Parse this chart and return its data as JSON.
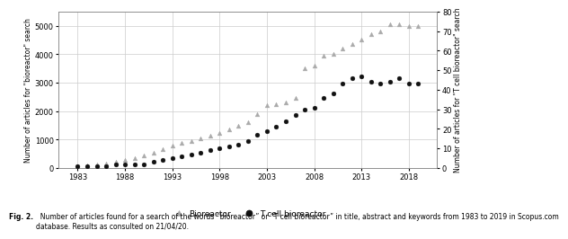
{
  "years": [
    1983,
    1984,
    1985,
    1986,
    1987,
    1988,
    1989,
    1990,
    1991,
    1992,
    1993,
    1994,
    1995,
    1996,
    1997,
    1998,
    1999,
    2000,
    2001,
    2002,
    2003,
    2004,
    2005,
    2006,
    2007,
    2008,
    2009,
    2010,
    2011,
    2012,
    2013,
    2014,
    2015,
    2016,
    2017,
    2018,
    2019
  ],
  "bioreactor": [
    50,
    100,
    130,
    170,
    220,
    280,
    350,
    430,
    530,
    650,
    780,
    870,
    950,
    1050,
    1150,
    1230,
    1350,
    1480,
    1600,
    1900,
    2200,
    2250,
    2300,
    2450,
    3500,
    3600,
    3950,
    4000,
    4200,
    4350,
    4500,
    4700,
    4800,
    5050,
    5050,
    5000,
    5000
  ],
  "t_cell_bioreactor": [
    1,
    1,
    1,
    1,
    2,
    2,
    2,
    2,
    3,
    4,
    5,
    6,
    7,
    8,
    9,
    10,
    11,
    12,
    14,
    17,
    19,
    21,
    24,
    27,
    30,
    31,
    36,
    38,
    43,
    46,
    47,
    44,
    43,
    44,
    46,
    43,
    43
  ],
  "bioreactor_color": "#aaaaaa",
  "t_cell_color": "#111111",
  "left_ylim": [
    0,
    5500
  ],
  "right_ylim": [
    0,
    80
  ],
  "left_yticks": [
    0,
    1000,
    2000,
    3000,
    4000,
    5000
  ],
  "right_yticks": [
    0,
    10,
    20,
    30,
    40,
    50,
    60,
    70,
    80
  ],
  "xticks": [
    1983,
    1988,
    1993,
    1998,
    2003,
    2008,
    2013,
    2018
  ],
  "xlim": [
    1981,
    2021
  ],
  "left_ylabel": "Number of articles for \"bioreactor\" search",
  "right_ylabel": "Number of articles for \"T cell bioreactor\" search",
  "legend_bioreactor": "Bioreactor",
  "legend_t_cell": "T cell bioreactor",
  "caption_bold": "Fig. 2.",
  "caption_rest": "  Number of articles found for a search of the words “bioreactor” or “T cell bioreactor” in title, abstract and keywords from 1983 to 2019 in Scopus.com\ndatabase. Results as consulted on 21/04/20.",
  "background_color": "#ffffff",
  "grid_color": "#cccccc"
}
